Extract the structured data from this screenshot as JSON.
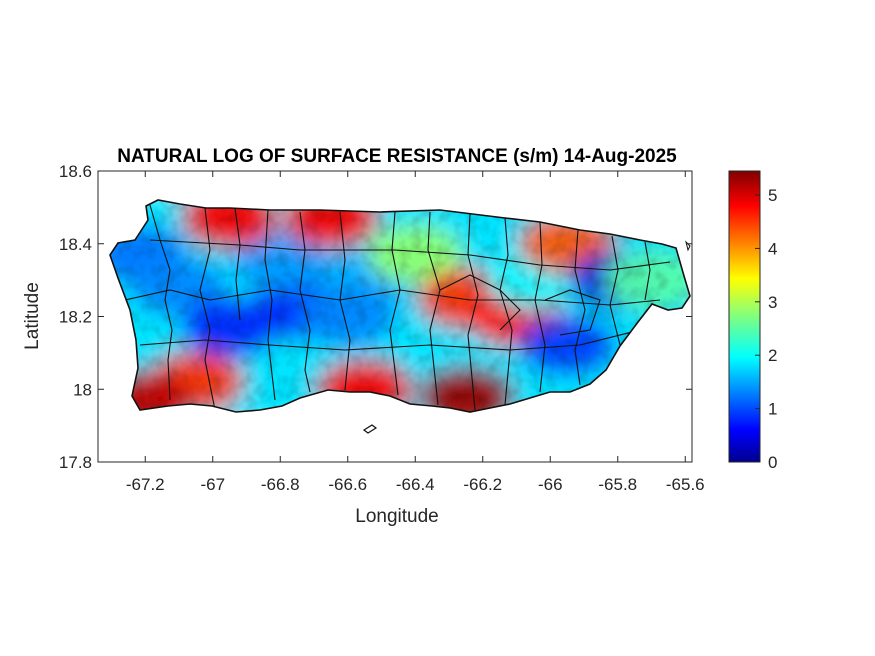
{
  "chart_data": {
    "type": "heatmap",
    "title": "NATURAL LOG OF SURFACE RESISTANCE (s/m) 14-Aug-2025",
    "xlabel": "Longitude",
    "ylabel": "Latitude",
    "xlim": [
      -67.34,
      -65.58
    ],
    "ylim": [
      17.8,
      18.6
    ],
    "xticks": [
      -67.2,
      -67,
      -66.8,
      -66.6,
      -66.4,
      -66.2,
      -66,
      -65.8,
      -65.6
    ],
    "xtick_labels": [
      "-67.2",
      "-67",
      "-66.8",
      "-66.6",
      "-66.4",
      "-66.2",
      "-66",
      "-65.8",
      "-65.6"
    ],
    "yticks": [
      17.8,
      18,
      18.2,
      18.4,
      18.6
    ],
    "ytick_labels": [
      "17.8",
      "18",
      "18.2",
      "18.4",
      "18.6"
    ],
    "colorbar": {
      "range": [
        0,
        5.45
      ],
      "ticks": [
        0,
        1,
        2,
        3,
        4,
        5
      ],
      "tick_labels": [
        "0",
        "1",
        "2",
        "3",
        "4",
        "5"
      ],
      "colormap": "jet"
    },
    "field_samples": [
      {
        "lon": -67.22,
        "lat": 18.37,
        "value": 1.3
      },
      {
        "lon": -67.1,
        "lat": 18.28,
        "value": 1.4
      },
      {
        "lon": -66.95,
        "lat": 18.17,
        "value": 0.9
      },
      {
        "lon": -66.75,
        "lat": 18.22,
        "value": 0.9
      },
      {
        "lon": -66.8,
        "lat": 18.35,
        "value": 1.5
      },
      {
        "lon": -66.55,
        "lat": 18.3,
        "value": 1.6
      },
      {
        "lon": -66.6,
        "lat": 18.2,
        "value": 1.4
      },
      {
        "lon": -66.4,
        "lat": 18.37,
        "value": 2.8
      },
      {
        "lon": -66.25,
        "lat": 18.25,
        "value": 4.5
      },
      {
        "lon": -66.1,
        "lat": 18.2,
        "value": 4.7
      },
      {
        "lon": -66.05,
        "lat": 18.3,
        "value": 2.0
      },
      {
        "lon": -65.95,
        "lat": 18.4,
        "value": 4.3
      },
      {
        "lon": -65.8,
        "lat": 18.3,
        "value": 0.5
      },
      {
        "lon": -65.95,
        "lat": 18.12,
        "value": 1.0
      },
      {
        "lon": -65.7,
        "lat": 18.3,
        "value": 2.5
      },
      {
        "lon": -66.65,
        "lat": 18.47,
        "value": 4.8
      },
      {
        "lon": -66.95,
        "lat": 18.47,
        "value": 4.8
      },
      {
        "lon": -67.05,
        "lat": 18.02,
        "value": 4.5
      },
      {
        "lon": -66.55,
        "lat": 18.0,
        "value": 4.8
      },
      {
        "lon": -66.25,
        "lat": 17.98,
        "value": 5.3
      },
      {
        "lon": -67.2,
        "lat": 17.97,
        "value": 5.1
      }
    ],
    "colors": {
      "outline": "#111111",
      "background": "#ffffff"
    }
  }
}
